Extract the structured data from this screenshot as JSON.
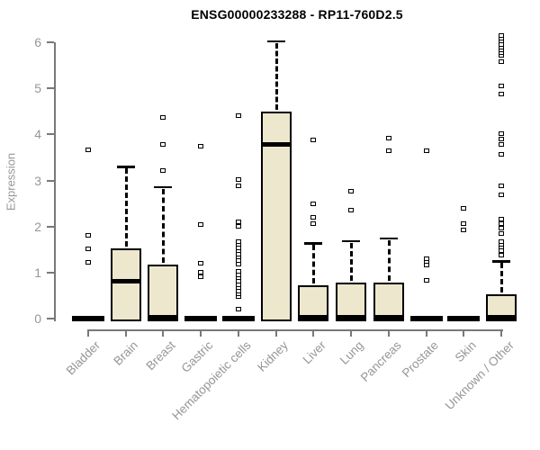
{
  "title": "ENSG00000233288 - RP11-760D2.5",
  "chart_data": {
    "type": "boxplot",
    "title": "ENSG00000233288 - RP11-760D2.5",
    "xlabel": "",
    "ylabel": "Expression",
    "ylim": [
      0,
      6
    ],
    "yticks": [
      0,
      1,
      2,
      3,
      4,
      5,
      6
    ],
    "grid": false,
    "legend": "none",
    "colors": {
      "box_fill": "#EDE7CD",
      "box_stroke": "#000000",
      "axis_line": "#787878",
      "axis_text": "#969696",
      "title_text": "#000000",
      "background": "#ffffff"
    },
    "categories": [
      "Bladder",
      "Brain",
      "Breast",
      "Gastric",
      "Hematopoietic cells",
      "Kidney",
      "Liver",
      "Lung",
      "Pancreas",
      "Prostate",
      "Skin",
      "Unknown / Other"
    ],
    "boxes": [
      {
        "label": "Bladder",
        "q1": 0,
        "median": 0,
        "q3": 0.03,
        "whisker_low": 0,
        "whisker_high": 0.03,
        "outliers": [
          1.22,
          1.52,
          1.8,
          3.67
        ]
      },
      {
        "label": "Brain",
        "q1": 0,
        "median": 0.82,
        "q3": 1.52,
        "whisker_low": 0,
        "whisker_high": 3.3,
        "outliers": []
      },
      {
        "label": "Breast",
        "q1": 0,
        "median": 0.02,
        "q3": 1.17,
        "whisker_low": 0,
        "whisker_high": 2.86,
        "outliers": [
          3.22,
          3.79,
          4.36
        ]
      },
      {
        "label": "Gastric",
        "q1": 0,
        "median": 0,
        "q3": 0.03,
        "whisker_low": 0,
        "whisker_high": 0.03,
        "outliers": [
          0.91,
          1.0,
          1.2,
          2.05,
          3.74
        ]
      },
      {
        "label": "Hematopoietic cells",
        "q1": 0,
        "median": 0,
        "q3": 0.03,
        "whisker_low": 0,
        "whisker_high": 0.03,
        "outliers": [
          0.21,
          0.47,
          0.53,
          0.6,
          0.67,
          0.74,
          0.81,
          0.88,
          0.95,
          1.02,
          1.19,
          1.26,
          1.33,
          1.4,
          1.47,
          1.54,
          1.61,
          1.68,
          2.0,
          2.1,
          2.88,
          3.01,
          4.41
        ]
      },
      {
        "label": "Kidney",
        "q1": 0,
        "median": 3.79,
        "q3": 4.5,
        "whisker_low": 0,
        "whisker_high": 6.02,
        "outliers": []
      },
      {
        "label": "Liver",
        "q1": 0,
        "median": 0.02,
        "q3": 0.73,
        "whisker_low": 0,
        "whisker_high": 1.64,
        "outliers": [
          2.06,
          2.19,
          2.49,
          3.87
        ]
      },
      {
        "label": "Lung",
        "q1": 0,
        "median": 0.02,
        "q3": 0.79,
        "whisker_low": 0,
        "whisker_high": 1.69,
        "outliers": [
          2.36,
          2.76
        ]
      },
      {
        "label": "Pancreas",
        "q1": 0,
        "median": 0.02,
        "q3": 0.78,
        "whisker_low": 0,
        "whisker_high": 1.74,
        "outliers": [
          3.65,
          3.92
        ]
      },
      {
        "label": "Prostate",
        "q1": 0,
        "median": 0,
        "q3": 0.03,
        "whisker_low": 0,
        "whisker_high": 0.03,
        "outliers": [
          0.83,
          1.17,
          1.24,
          1.3,
          3.65
        ]
      },
      {
        "label": "Skin",
        "q1": 0,
        "median": 0,
        "q3": 0.03,
        "whisker_low": 0,
        "whisker_high": 0.03,
        "outliers": [
          1.93,
          2.06,
          2.39
        ]
      },
      {
        "label": "Unknown / Other",
        "q1": 0,
        "median": 0.02,
        "q3": 0.52,
        "whisker_low": 0,
        "whisker_high": 1.25,
        "outliers": [
          1.37,
          1.48,
          1.55,
          1.61,
          1.67,
          1.84,
          1.97,
          2.06,
          2.16,
          2.68,
          2.88,
          3.56,
          3.79,
          3.89,
          4.02,
          4.87,
          5.06,
          5.58,
          5.72,
          5.78,
          5.84,
          5.9,
          5.96,
          6.02,
          6.08,
          6.14
        ]
      }
    ]
  }
}
